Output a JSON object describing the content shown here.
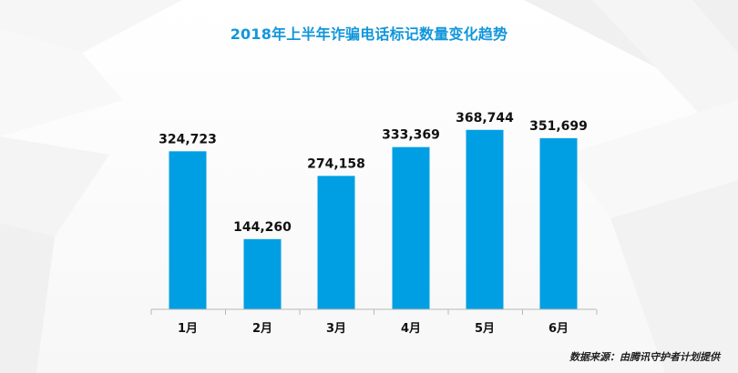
{
  "chart_data": {
    "type": "bar",
    "title": "2018年上半年诈骗电话标记数量变化趋势",
    "categories": [
      "1月",
      "2月",
      "3月",
      "4月",
      "5月",
      "6月"
    ],
    "values": [
      324723,
      144260,
      274158,
      333369,
      368744,
      351699
    ],
    "value_labels": [
      "324,723",
      "144,260",
      "274,158",
      "333,369",
      "368,744",
      "351,699"
    ],
    "ylim": [
      0,
      430000
    ],
    "grid": false,
    "legend": "none",
    "bar_color": "#009fe3",
    "source_text": "数据来源：由腾讯守护者计划提供"
  }
}
